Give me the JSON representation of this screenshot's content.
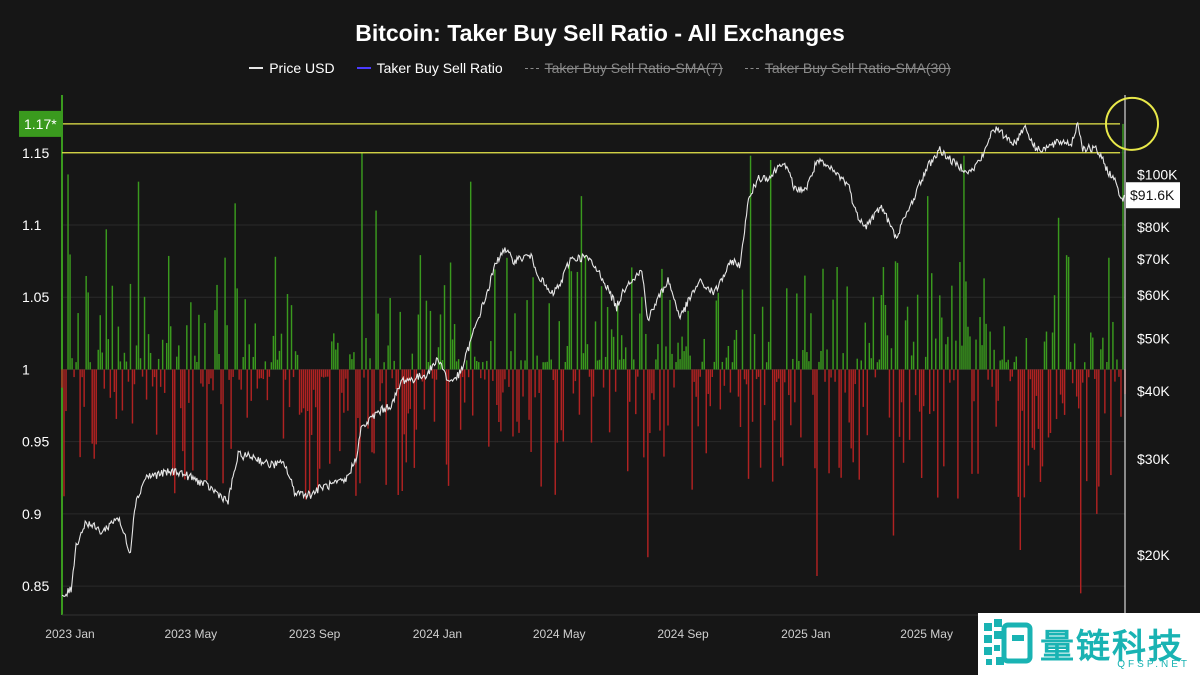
{
  "chart_data": {
    "type": "bar",
    "title": "Bitcoin: Taker Buy Sell Ratio - All Exchanges",
    "legend": [
      {
        "name": "Price USD",
        "color": "#e6e6e6",
        "visible": true
      },
      {
        "name": "Taker Buy Sell Ratio",
        "color": "#4b3bff",
        "visible": true
      },
      {
        "name": "Taker Buy Sell Ratio-SMA(7)",
        "color": "#8a8a8a",
        "visible": false
      },
      {
        "name": "Taker Buy Sell Ratio-SMA(30)",
        "color": "#8a8a8a",
        "visible": false
      }
    ],
    "x_axis": {
      "start": "2023-01-01",
      "end": "2025-11-22",
      "tick_labels": [
        "2023 Jan",
        "2023 May",
        "2023 Sep",
        "2024 Jan",
        "2024 May",
        "2024 Sep",
        "2025 Jan",
        "2025 May"
      ]
    },
    "left_axis": {
      "label": "Taker Buy Sell Ratio",
      "ylim": [
        0.83,
        1.19
      ],
      "ticks": [
        0.85,
        0.9,
        0.95,
        1,
        1.05,
        1.1,
        1.15
      ],
      "tick_labels": [
        "0.85",
        "0.9",
        "0.95",
        "1",
        "1.05",
        "1.1",
        "1.15"
      ],
      "baseline": 1
    },
    "right_axis": {
      "label": "Price USD",
      "scale": "log",
      "range": [
        15500,
        140000
      ],
      "ticks": [
        20000,
        30000,
        40000,
        50000,
        60000,
        70000,
        80000,
        100000
      ],
      "tick_labels": [
        "$20K",
        "$30K",
        "$40K",
        "$50K",
        "$60K",
        "$70K",
        "$80K",
        "$100K"
      ]
    },
    "reference_lines": [
      {
        "value": 1.17,
        "label": "1.17*",
        "color": "#e8e84a"
      },
      {
        "value": 1.15,
        "label": "1.15",
        "color": "#e8e84a"
      }
    ],
    "current_price_label": "$91.6K",
    "current_price": 91600,
    "highlight_circle_date": "2025-11-21",
    "bar_colors": {
      "above": "#3a9a1e",
      "below": "#b02222"
    },
    "price_series": {
      "name": "Price USD",
      "dates": [
        "2023-01-01",
        "2023-01-10",
        "2023-01-15",
        "2023-01-25",
        "2023-02-10",
        "2023-02-25",
        "2023-03-10",
        "2023-03-14",
        "2023-03-25",
        "2023-04-10",
        "2023-04-25",
        "2023-05-10",
        "2023-05-25",
        "2023-06-10",
        "2023-06-15",
        "2023-06-25",
        "2023-07-10",
        "2023-07-25",
        "2023-08-10",
        "2023-08-20",
        "2023-09-05",
        "2023-09-15",
        "2023-09-30",
        "2023-10-10",
        "2023-10-20",
        "2023-10-25",
        "2023-11-10",
        "2023-11-25",
        "2023-12-05",
        "2023-12-15",
        "2023-12-30",
        "2024-01-10",
        "2024-01-20",
        "2024-02-01",
        "2024-02-15",
        "2024-02-28",
        "2024-03-05",
        "2024-03-14",
        "2024-03-25",
        "2024-04-10",
        "2024-04-20",
        "2024-05-01",
        "2024-05-10",
        "2024-05-20",
        "2024-06-05",
        "2024-06-20",
        "2024-07-05",
        "2024-07-15",
        "2024-07-30",
        "2024-08-05",
        "2024-08-25",
        "2024-09-06",
        "2024-09-25",
        "2024-10-10",
        "2024-10-28",
        "2024-11-05",
        "2024-11-12",
        "2024-11-22",
        "2024-12-05",
        "2024-12-17",
        "2024-12-30",
        "2025-01-10",
        "2025-01-20",
        "2025-02-05",
        "2025-02-20",
        "2025-02-28",
        "2025-03-10",
        "2025-03-25",
        "2025-04-08",
        "2025-04-20",
        "2025-05-01",
        "2025-05-10",
        "2025-05-22",
        "2025-06-05",
        "2025-06-22",
        "2025-07-05",
        "2025-07-14",
        "2025-07-25",
        "2025-08-05",
        "2025-08-14",
        "2025-08-25",
        "2025-09-05",
        "2025-09-20",
        "2025-09-30",
        "2025-10-06",
        "2025-10-11",
        "2025-10-25",
        "2025-11-05",
        "2025-11-14",
        "2025-11-18",
        "2025-11-22"
      ],
      "values": [
        16600,
        17300,
        20800,
        23000,
        22000,
        23500,
        20200,
        24500,
        27800,
        28200,
        28500,
        27700,
        26800,
        25500,
        25000,
        30500,
        30300,
        29300,
        29400,
        26100,
        25800,
        26600,
        27000,
        27400,
        30000,
        34000,
        36500,
        37800,
        41900,
        42000,
        43000,
        46000,
        41500,
        43000,
        52000,
        61000,
        67000,
        73000,
        69500,
        71000,
        64500,
        60000,
        62800,
        70000,
        70500,
        65000,
        57000,
        63000,
        66500,
        54000,
        64000,
        54500,
        63500,
        60500,
        69500,
        68000,
        88000,
        98500,
        99000,
        106000,
        93500,
        94500,
        106000,
        101500,
        96000,
        84500,
        80500,
        87500,
        76500,
        85000,
        95000,
        103500,
        111000,
        105000,
        101000,
        109000,
        122000,
        118000,
        114000,
        123000,
        111500,
        112000,
        115000,
        114000,
        124500,
        112000,
        111000,
        101500,
        96000,
        90000,
        91600
      ]
    },
    "ratio_series": {
      "name": "Taker Buy Sell Ratio",
      "start": "2023-01-01",
      "interval_days": 2,
      "spikes": [
        {
          "date": "2023-01-08",
          "value": 1.135
        },
        {
          "date": "2023-02-14",
          "value": 1.097
        },
        {
          "date": "2023-03-18",
          "value": 1.13
        },
        {
          "date": "2023-06-22",
          "value": 1.115
        },
        {
          "date": "2023-10-26",
          "value": 1.15
        },
        {
          "date": "2023-11-10",
          "value": 1.11
        },
        {
          "date": "2024-02-12",
          "value": 1.13
        },
        {
          "date": "2024-06-01",
          "value": 1.12
        },
        {
          "date": "2024-11-15",
          "value": 1.148
        },
        {
          "date": "2024-12-05",
          "value": 1.145
        },
        {
          "date": "2025-05-10",
          "value": 1.12
        },
        {
          "date": "2025-06-15",
          "value": 1.148
        },
        {
          "date": "2025-09-18",
          "value": 1.105
        },
        {
          "date": "2025-11-21",
          "value": 1.17
        }
      ],
      "dips": [
        {
          "date": "2023-09-01",
          "value": 0.91
        },
        {
          "date": "2024-08-05",
          "value": 0.87
        },
        {
          "date": "2025-01-20",
          "value": 0.857
        },
        {
          "date": "2025-04-07",
          "value": 0.885
        },
        {
          "date": "2025-08-10",
          "value": 0.875
        },
        {
          "date": "2025-10-10",
          "value": 0.845
        },
        {
          "date": "2025-10-25",
          "value": 0.9
        }
      ]
    }
  },
  "watermark": {
    "cn": "量链科技",
    "en": "QFSP.NET"
  }
}
